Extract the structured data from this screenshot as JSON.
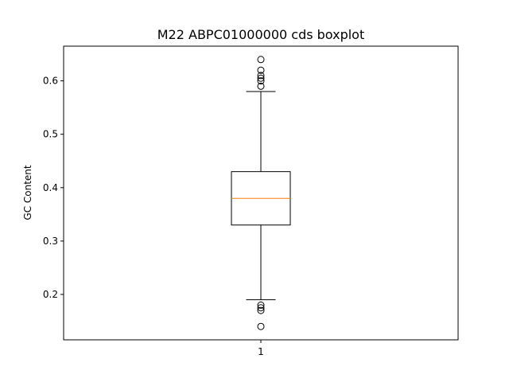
{
  "chart_data": {
    "type": "boxplot",
    "title": "M22 ABPC01000000 cds boxplot",
    "xlabel": "",
    "ylabel": "GC Content",
    "ylim": [
      0.115,
      0.665
    ],
    "categories": [
      "1"
    ],
    "yticks": [
      {
        "value": 0.2,
        "label": "0.2"
      },
      {
        "value": 0.3,
        "label": "0.3"
      },
      {
        "value": 0.4,
        "label": "0.4"
      },
      {
        "value": 0.5,
        "label": "0.5"
      },
      {
        "value": 0.6,
        "label": "0.6"
      }
    ],
    "boxes": [
      {
        "category": "1",
        "whisker_low": 0.19,
        "q1": 0.33,
        "median": 0.38,
        "q3": 0.43,
        "whisker_high": 0.58,
        "outliers": [
          0.64,
          0.62,
          0.61,
          0.605,
          0.6,
          0.59,
          0.18,
          0.175,
          0.17,
          0.14
        ]
      }
    ],
    "grid": false,
    "colors": {
      "box": "#000000",
      "median": "#ff7f0e",
      "outlier": "#000000"
    }
  }
}
